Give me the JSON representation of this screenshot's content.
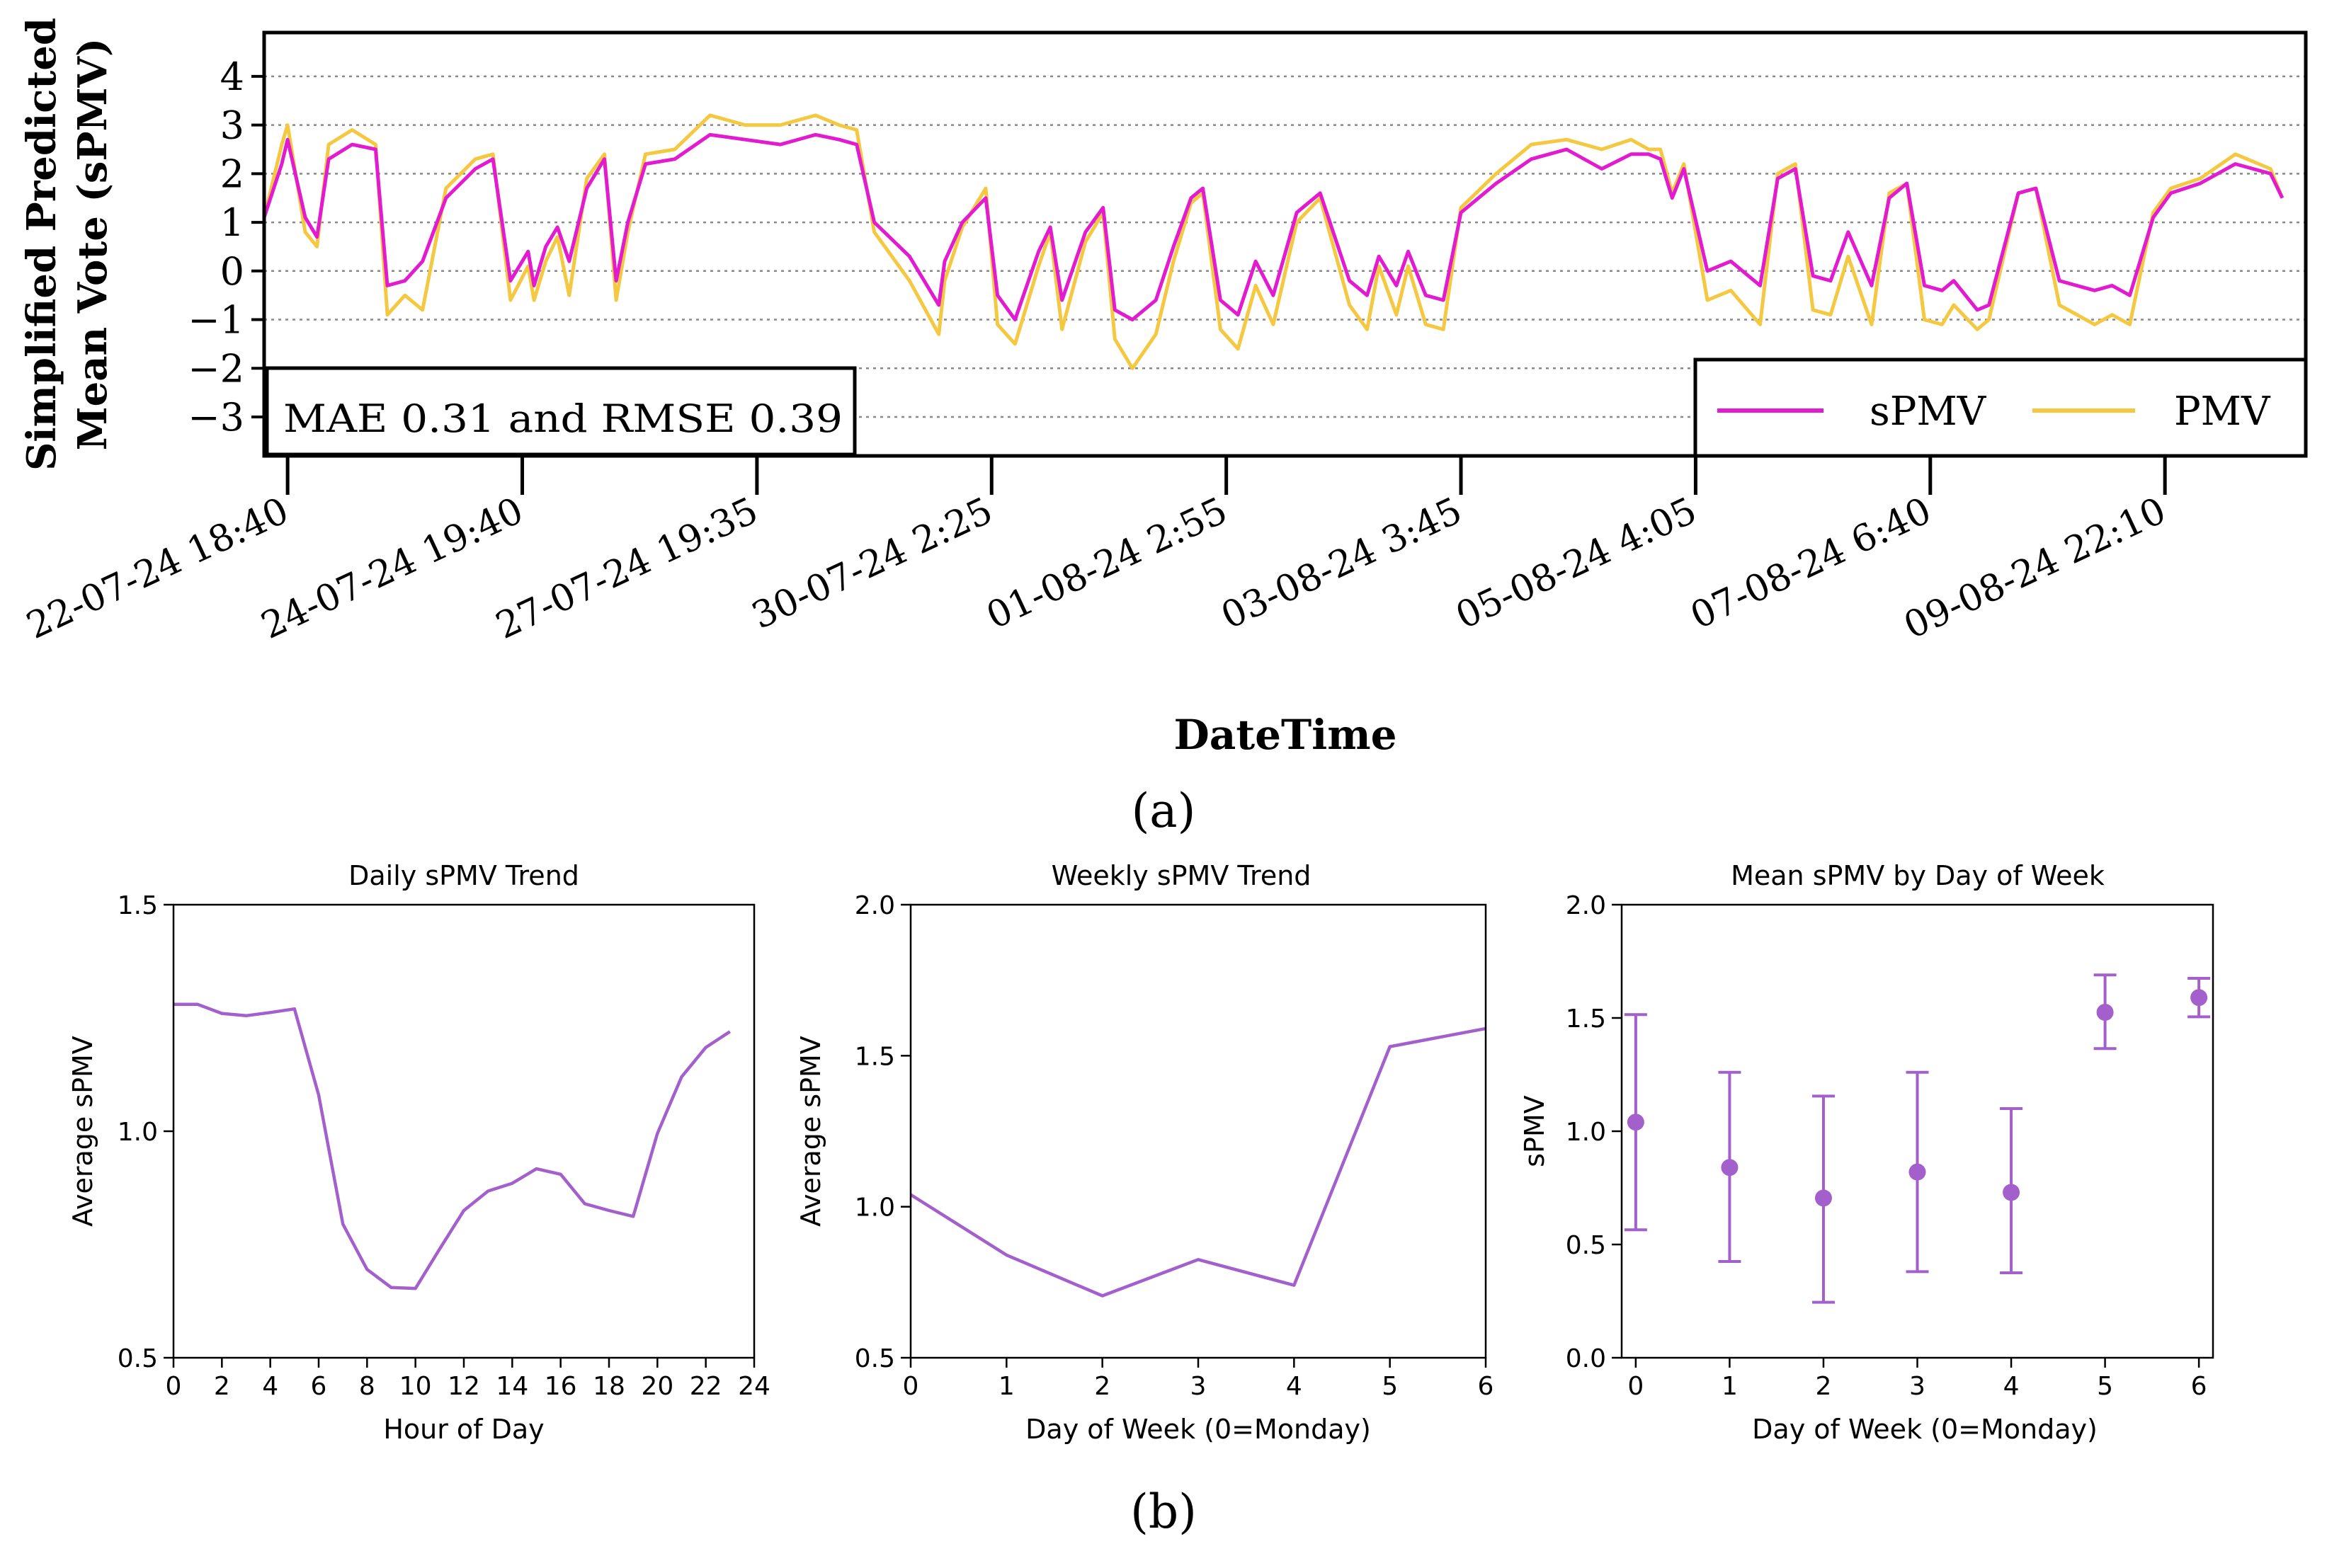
{
  "colors": {
    "spmv": "#e31bd0",
    "pmv": "#f5c842",
    "purple": "#a35fcc",
    "grid": "#888888",
    "axis": "#000000"
  },
  "panel_a_label": "(a)",
  "panel_b_label": "(b)",
  "chart_data": [
    {
      "type": "line",
      "title": "",
      "xlabel": "DateTime",
      "ylabel": "Simplified Predicted Mean Vote (sPMV)",
      "ylabel_line1": "Simplified Predicted",
      "ylabel_line2": "Mean Vote (sPMV)",
      "ylim": [
        -3.8,
        4.9
      ],
      "yticks": [
        4,
        3,
        2,
        1,
        0,
        -1,
        -2,
        -3
      ],
      "ytick_labels": [
        "4",
        "3",
        "2",
        "1",
        "0",
        "−1",
        "−2",
        "−3"
      ],
      "grid": true,
      "xlim": [
        -0.2,
        17.2
      ],
      "xticks": [
        0,
        2,
        4,
        6,
        8,
        10,
        12,
        14,
        16
      ],
      "xtick_labels": [
        "22-07-24 18:40",
        "24-07-24 19:40",
        "27-07-24 19:35",
        "30-07-24 2:25",
        "01-08-24 2:55",
        "03-08-24 3:45",
        "05-08-24 4:05",
        "07-08-24 6:40",
        "09-08-24 22:10"
      ],
      "annotation": "MAE 0.31 and RMSE 0.39",
      "legend": [
        "sPMV",
        "PMV"
      ],
      "legend_position": "lower-right",
      "series": [
        {
          "name": "sPMV",
          "x": [
            -0.2,
            -0.05,
            0.0,
            0.15,
            0.25,
            0.35,
            0.55,
            0.75,
            0.85,
            1.0,
            1.15,
            1.35,
            1.6,
            1.75,
            1.9,
            2.05,
            2.1,
            2.2,
            2.3,
            2.4,
            2.55,
            2.7,
            2.8,
            2.9,
            3.05,
            3.3,
            3.6,
            3.9,
            4.2,
            4.5,
            4.7,
            4.85,
            5.0,
            5.3,
            5.55,
            5.6,
            5.75,
            5.95,
            6.05,
            6.2,
            6.4,
            6.5,
            6.6,
            6.8,
            6.95,
            7.05,
            7.2,
            7.4,
            7.55,
            7.7,
            7.8,
            7.95,
            8.1,
            8.25,
            8.4,
            8.6,
            8.8,
            9.05,
            9.2,
            9.3,
            9.45,
            9.55,
            9.7,
            9.85,
            10.0,
            10.3,
            10.6,
            10.9,
            11.2,
            11.45,
            11.6,
            11.7,
            11.8,
            11.9,
            12.1,
            12.3,
            12.55,
            12.7,
            12.85,
            13.0,
            13.15,
            13.3,
            13.5,
            13.65,
            13.8,
            13.95,
            14.1,
            14.2,
            14.4,
            14.5,
            14.75,
            14.9,
            15.1,
            15.4,
            15.55,
            15.7,
            15.9,
            16.05,
            16.3,
            16.6,
            16.9,
            17.0
          ],
          "values": [
            1.1,
            2.2,
            2.7,
            1.1,
            0.7,
            2.3,
            2.6,
            2.5,
            -0.3,
            -0.2,
            0.2,
            1.5,
            2.1,
            2.3,
            -0.2,
            0.4,
            -0.3,
            0.5,
            0.9,
            0.2,
            1.7,
            2.3,
            -0.2,
            1.0,
            2.2,
            2.3,
            2.8,
            2.7,
            2.6,
            2.8,
            2.7,
            2.6,
            1.0,
            0.3,
            -0.7,
            0.2,
            1.0,
            1.5,
            -0.5,
            -1.0,
            0.4,
            0.9,
            -0.6,
            0.8,
            1.3,
            -0.8,
            -1.0,
            -0.6,
            0.5,
            1.5,
            1.7,
            -0.6,
            -0.9,
            0.2,
            -0.5,
            1.2,
            1.6,
            -0.2,
            -0.5,
            0.3,
            -0.3,
            0.4,
            -0.5,
            -0.6,
            1.2,
            1.8,
            2.3,
            2.5,
            2.1,
            2.4,
            2.4,
            2.3,
            1.5,
            2.1,
            0.0,
            0.2,
            -0.3,
            1.9,
            2.1,
            -0.1,
            -0.2,
            0.8,
            -0.3,
            1.5,
            1.8,
            -0.3,
            -0.4,
            -0.2,
            -0.8,
            -0.7,
            1.6,
            1.7,
            -0.2,
            -0.4,
            -0.3,
            -0.5,
            1.1,
            1.6,
            1.8,
            2.2,
            2.0,
            1.5
          ]
        },
        {
          "name": "PMV",
          "x": [
            -0.2,
            -0.05,
            0.0,
            0.15,
            0.25,
            0.35,
            0.55,
            0.75,
            0.85,
            1.0,
            1.15,
            1.35,
            1.6,
            1.75,
            1.9,
            2.05,
            2.1,
            2.2,
            2.3,
            2.4,
            2.55,
            2.7,
            2.8,
            2.9,
            3.05,
            3.3,
            3.6,
            3.9,
            4.2,
            4.5,
            4.7,
            4.85,
            5.0,
            5.3,
            5.55,
            5.6,
            5.75,
            5.95,
            6.05,
            6.2,
            6.4,
            6.5,
            6.6,
            6.8,
            6.95,
            7.05,
            7.2,
            7.4,
            7.55,
            7.7,
            7.8,
            7.95,
            8.1,
            8.25,
            8.4,
            8.6,
            8.8,
            9.05,
            9.2,
            9.3,
            9.45,
            9.55,
            9.7,
            9.85,
            10.0,
            10.3,
            10.6,
            10.9,
            11.2,
            11.45,
            11.6,
            11.7,
            11.8,
            11.9,
            12.1,
            12.3,
            12.55,
            12.7,
            12.85,
            13.0,
            13.15,
            13.3,
            13.5,
            13.65,
            13.8,
            13.95,
            14.1,
            14.2,
            14.4,
            14.5,
            14.75,
            14.9,
            15.1,
            15.4,
            15.55,
            15.7,
            15.9,
            16.05,
            16.3,
            16.6,
            16.9,
            17.0
          ],
          "values": [
            1.1,
            2.6,
            3.0,
            0.8,
            0.5,
            2.6,
            2.9,
            2.6,
            -0.9,
            -0.5,
            -0.8,
            1.7,
            2.3,
            2.4,
            -0.6,
            0.1,
            -0.6,
            0.2,
            0.7,
            -0.5,
            1.9,
            2.4,
            -0.6,
            0.8,
            2.4,
            2.5,
            3.2,
            3.0,
            3.0,
            3.2,
            3.0,
            2.9,
            0.8,
            -0.2,
            -1.3,
            -0.2,
            0.9,
            1.7,
            -1.1,
            -1.5,
            0.1,
            0.8,
            -1.2,
            0.6,
            1.2,
            -1.4,
            -2.0,
            -1.3,
            0.2,
            1.4,
            1.6,
            -1.2,
            -1.6,
            -0.3,
            -1.1,
            1.0,
            1.5,
            -0.7,
            -1.2,
            0.1,
            -0.9,
            0.1,
            -1.1,
            -1.2,
            1.3,
            2.0,
            2.6,
            2.7,
            2.5,
            2.7,
            2.5,
            2.5,
            1.6,
            2.2,
            -0.6,
            -0.4,
            -1.1,
            2.0,
            2.2,
            -0.8,
            -0.9,
            0.3,
            -1.1,
            1.6,
            1.8,
            -1.0,
            -1.1,
            -0.7,
            -1.2,
            -1.0,
            1.6,
            1.7,
            -0.7,
            -1.1,
            -0.9,
            -1.1,
            1.2,
            1.7,
            1.9,
            2.4,
            2.1,
            1.5
          ]
        }
      ]
    },
    {
      "type": "line",
      "title": "Daily sPMV Trend",
      "xlabel": "Hour of Day",
      "ylabel": "Average sPMV",
      "xlim": [
        0,
        24
      ],
      "ylim": [
        0.5,
        1.5
      ],
      "xticks": [
        0,
        2,
        4,
        6,
        8,
        10,
        12,
        14,
        16,
        18,
        20,
        22,
        24
      ],
      "xtick_labels": [
        "0",
        "2",
        "4",
        "6",
        "8",
        "10",
        "12",
        "14",
        "16",
        "18",
        "20",
        "22",
        "24"
      ],
      "yticks": [
        0.5,
        1.0,
        1.5
      ],
      "ytick_labels": [
        "0.5",
        "1.0",
        "1.5"
      ],
      "grid": false,
      "x": [
        0,
        1,
        2,
        3,
        4,
        5,
        6,
        7,
        8,
        9,
        10,
        11,
        12,
        13,
        14,
        15,
        16,
        17,
        18,
        19,
        20,
        21,
        22,
        23
      ],
      "values": [
        1.28,
        1.28,
        1.26,
        1.255,
        1.262,
        1.27,
        1.08,
        0.795,
        0.695,
        0.655,
        0.653,
        0.74,
        0.825,
        0.868,
        0.885,
        0.917,
        0.905,
        0.84,
        0.825,
        0.812,
        0.995,
        1.12,
        1.185,
        1.22
      ]
    },
    {
      "type": "line",
      "title": "Weekly sPMV Trend",
      "xlabel": "Day of Week (0=Monday)",
      "ylabel": "Average sPMV",
      "xlim": [
        0,
        6
      ],
      "ylim": [
        0.5,
        2.0
      ],
      "xticks": [
        0,
        1,
        2,
        3,
        4,
        5,
        6
      ],
      "xtick_labels": [
        "0",
        "1",
        "2",
        "3",
        "4",
        "5",
        "6"
      ],
      "yticks": [
        0.5,
        1.0,
        1.5,
        2.0
      ],
      "ytick_labels": [
        "0.5",
        "1.0",
        "1.5",
        "2.0"
      ],
      "grid": false,
      "x": [
        0,
        1,
        2,
        3,
        4,
        5,
        6
      ],
      "values": [
        1.04,
        0.84,
        0.705,
        0.825,
        0.74,
        1.53,
        1.59
      ]
    },
    {
      "type": "scatter",
      "title": "Mean sPMV by Day of Week",
      "xlabel": "Day of Week (0=Monday)",
      "ylabel": "sPMV",
      "xlim": [
        -0.15,
        6.15
      ],
      "ylim": [
        0.0,
        2.0
      ],
      "xticks": [
        0,
        1,
        2,
        3,
        4,
        5,
        6
      ],
      "xtick_labels": [
        "0",
        "1",
        "2",
        "3",
        "4",
        "5",
        "6"
      ],
      "yticks": [
        0.0,
        0.5,
        1.0,
        1.5,
        2.0
      ],
      "ytick_labels": [
        "0.0",
        "0.5",
        "1.0",
        "1.5",
        "2.0"
      ],
      "grid": false,
      "x": [
        0,
        1,
        2,
        3,
        4,
        5,
        6
      ],
      "values": [
        1.04,
        0.84,
        0.705,
        0.82,
        0.73,
        1.525,
        1.59
      ],
      "err_low": [
        0.565,
        0.425,
        0.245,
        0.38,
        0.375,
        1.365,
        1.505
      ],
      "err_high": [
        1.515,
        1.26,
        1.155,
        1.26,
        1.1,
        1.69,
        1.675
      ]
    }
  ]
}
